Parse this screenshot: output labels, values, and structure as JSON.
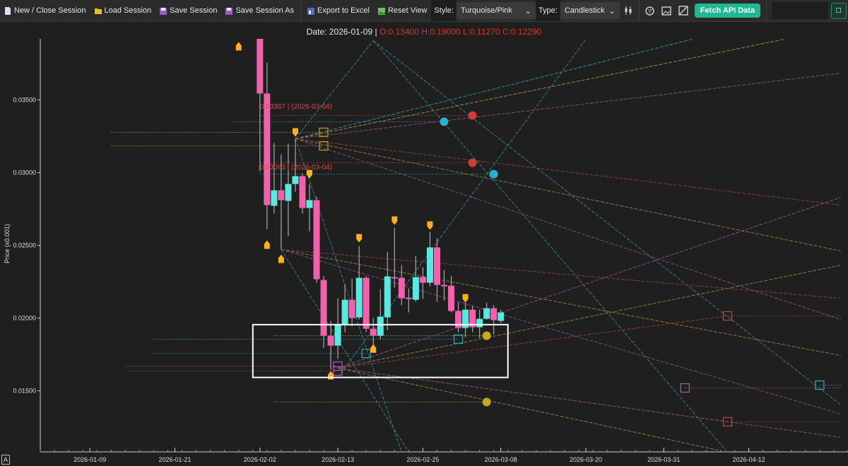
{
  "toolbar": {
    "new_close": "New / Close Session",
    "load": "Load Session",
    "save": "Save Session",
    "save_as": "Save Session As",
    "export": "Export to Excel",
    "reset": "Reset View",
    "style_label": "Style:",
    "style_value": "Turquoise/Pink",
    "type_label": "Type:",
    "type_value": "Candlestick",
    "fetch": "Fetch API Data",
    "icons": [
      "document-icon",
      "folder-icon",
      "floppy-icon",
      "floppy-icon",
      "excel-chart-icon",
      "image-icon",
      "candlestick-icon",
      "palette-icon",
      "image-icon",
      "draw-line-icon",
      "panel-toggle-icon"
    ]
  },
  "header": {
    "date_text": "Date: 2026-01-09 | ",
    "ohlc_text": "O:0.13400 H:0.19000 L:0.11270 C:0.12290"
  },
  "corner_button": "A",
  "chart_data": {
    "type": "candlestick",
    "ylabel": "Price (x0.001)",
    "xlabel": "",
    "xlim": [
      "2026-01-02",
      "2026-04-26"
    ],
    "ylim": [
      0.0109,
      0.0392
    ],
    "yticks": [
      "0.03500",
      "0.03000",
      "0.02500",
      "0.02000",
      "0.01500"
    ],
    "xticks": [
      "2026-01-09",
      "2026-01-21",
      "2026-02-02",
      "2026-02-13",
      "2026-02-25",
      "2026-03-08",
      "2026-03-20",
      "2026-03-31",
      "2026-04-12"
    ],
    "colors": {
      "up": "#5ce8de",
      "down": "#f062ab",
      "wick": "#a8a8a8",
      "background": "#1f1f1f",
      "marker": "#ffb020"
    },
    "candles": [
      {
        "date": "2026-02-02",
        "o": 0.0395,
        "h": 0.04,
        "l": 0.0301,
        "c": 0.03544
      },
      {
        "date": "2026-02-03",
        "o": 0.03544,
        "h": 0.03757,
        "l": 0.02612,
        "c": 0.02777
      },
      {
        "date": "2026-02-04",
        "o": 0.02772,
        "h": 0.03204,
        "l": 0.02719,
        "c": 0.02879
      },
      {
        "date": "2026-02-05",
        "o": 0.02879,
        "h": 0.03126,
        "l": 0.02471,
        "c": 0.02811
      },
      {
        "date": "2026-02-06",
        "o": 0.02806,
        "h": 0.03199,
        "l": 0.02563,
        "c": 0.02922
      },
      {
        "date": "2026-02-07",
        "o": 0.02922,
        "h": 0.03233,
        "l": 0.02869,
        "c": 0.02976
      },
      {
        "date": "2026-02-08",
        "o": 0.02976,
        "h": 0.02995,
        "l": 0.02719,
        "c": 0.02757
      },
      {
        "date": "2026-02-09",
        "o": 0.02757,
        "h": 0.02922,
        "l": 0.02597,
        "c": 0.02811
      },
      {
        "date": "2026-02-10",
        "o": 0.02811,
        "h": 0.02835,
        "l": 0.02243,
        "c": 0.02267
      },
      {
        "date": "2026-02-11",
        "o": 0.02262,
        "h": 0.02291,
        "l": 0.01796,
        "c": 0.01879
      },
      {
        "date": "2026-02-12",
        "o": 0.01879,
        "h": 0.01981,
        "l": 0.01646,
        "c": 0.01811
      },
      {
        "date": "2026-02-13",
        "o": 0.01811,
        "h": 0.02136,
        "l": 0.01719,
        "c": 0.01956
      },
      {
        "date": "2026-02-14",
        "o": 0.01956,
        "h": 0.02233,
        "l": 0.01903,
        "c": 0.02126
      },
      {
        "date": "2026-02-15",
        "o": 0.02126,
        "h": 0.02272,
        "l": 0.01942,
        "c": 0.02
      },
      {
        "date": "2026-02-16",
        "o": 0.02005,
        "h": 0.02495,
        "l": 0.0199,
        "c": 0.02277
      },
      {
        "date": "2026-02-17",
        "o": 0.02277,
        "h": 0.0229,
        "l": 0.01903,
        "c": 0.01927
      },
      {
        "date": "2026-02-18",
        "o": 0.01927,
        "h": 0.02,
        "l": 0.01816,
        "c": 0.01879
      },
      {
        "date": "2026-02-19",
        "o": 0.01879,
        "h": 0.02199,
        "l": 0.01854,
        "c": 0.0201
      },
      {
        "date": "2026-02-20",
        "o": 0.02005,
        "h": 0.02456,
        "l": 0.01918,
        "c": 0.02287
      },
      {
        "date": "2026-02-21",
        "o": 0.02282,
        "h": 0.02621,
        "l": 0.02209,
        "c": 0.02277
      },
      {
        "date": "2026-02-22",
        "o": 0.02277,
        "h": 0.02364,
        "l": 0.02088,
        "c": 0.02136
      },
      {
        "date": "2026-02-23",
        "o": 0.02141,
        "h": 0.02204,
        "l": 0.02039,
        "c": 0.02131
      },
      {
        "date": "2026-02-24",
        "o": 0.02126,
        "h": 0.02427,
        "l": 0.02112,
        "c": 0.02282
      },
      {
        "date": "2026-02-25",
        "o": 0.02282,
        "h": 0.0235,
        "l": 0.02131,
        "c": 0.02243
      },
      {
        "date": "2026-02-26",
        "o": 0.02243,
        "h": 0.02592,
        "l": 0.02219,
        "c": 0.02486
      },
      {
        "date": "2026-02-27",
        "o": 0.02486,
        "h": 0.02549,
        "l": 0.02112,
        "c": 0.02228
      },
      {
        "date": "2026-02-28",
        "o": 0.02228,
        "h": 0.0233,
        "l": 0.02122,
        "c": 0.02223
      },
      {
        "date": "2026-03-01",
        "o": 0.02223,
        "h": 0.02291,
        "l": 0.02039,
        "c": 0.02049
      },
      {
        "date": "2026-03-02",
        "o": 0.02049,
        "h": 0.02107,
        "l": 0.01903,
        "c": 0.01932
      },
      {
        "date": "2026-03-03",
        "o": 0.01932,
        "h": 0.02107,
        "l": 0.01869,
        "c": 0.02058
      },
      {
        "date": "2026-03-04",
        "o": 0.02058,
        "h": 0.02083,
        "l": 0.01903,
        "c": 0.01937
      },
      {
        "date": "2026-03-05",
        "o": 0.01937,
        "h": 0.02058,
        "l": 0.01864,
        "c": 0.01995
      },
      {
        "date": "2026-03-06",
        "o": 0.01995,
        "h": 0.02107,
        "l": 0.0199,
        "c": 0.02068
      },
      {
        "date": "2026-03-07",
        "o": 0.02068,
        "h": 0.02088,
        "l": 0.01888,
        "c": 0.01986
      },
      {
        "date": "2026-03-08",
        "o": 0.01981,
        "h": 0.02058,
        "l": 0.01966,
        "c": 0.02039
      }
    ],
    "trend_lines": [
      {
        "from": [
          "2026-02-07",
          0.03233
        ],
        "to": [
          "2026-04-04",
          0.03917
        ],
        "color": "#2f8f95"
      },
      {
        "from": [
          "2026-02-07",
          0.03233
        ],
        "to": [
          "2026-04-17",
          0.03917
        ],
        "color": "#9a8a3a"
      },
      {
        "from": [
          "2026-02-07",
          0.03233
        ],
        "to": [
          "2026-04-25",
          0.03684
        ],
        "color": "#8a4a6a"
      },
      {
        "from": [
          "2026-02-07",
          0.03233
        ],
        "to": [
          "2026-04-25",
          0.02777
        ],
        "color": "#8a3a3a"
      },
      {
        "from": [
          "2026-02-07",
          0.03233
        ],
        "to": [
          "2026-04-25",
          0.02461
        ],
        "color": "#8a7a36"
      },
      {
        "from": [
          "2026-02-07",
          0.03233
        ],
        "to": [
          "2026-04-25",
          0.0199
        ],
        "color": "#7a4a7a"
      },
      {
        "from": [
          "2026-02-07",
          0.03233
        ],
        "to": [
          "2026-02-22",
          0.01078
        ],
        "color": "#2f7f85"
      },
      {
        "from": [
          "2026-02-07",
          0.03233
        ],
        "to": [
          "2026-02-18",
          0.03908
        ],
        "color": "#2f7f85"
      },
      {
        "from": [
          "2026-02-18",
          0.03908
        ],
        "to": [
          "2026-04-25",
          0.01403
        ],
        "color": "#2f7f85"
      },
      {
        "from": [
          "2026-02-18",
          0.03908
        ],
        "to": [
          "2026-04-09",
          0.01078
        ],
        "color": "#2f7f85"
      },
      {
        "from": [
          "2026-02-13",
          0.01592
        ],
        "to": [
          "2026-03-20",
          0.03917
        ],
        "color": "#2f7f85"
      },
      {
        "from": [
          "2026-02-05",
          0.02471
        ],
        "to": [
          "2026-02-23",
          0.01078
        ],
        "color": "#2f7f85"
      },
      {
        "from": [
          "2026-02-05",
          0.02471
        ],
        "to": [
          "2026-04-25",
          0.02136
        ],
        "color": "#8a3a3a"
      },
      {
        "from": [
          "2026-02-05",
          0.02471
        ],
        "to": [
          "2026-04-25",
          0.01743
        ],
        "color": "#8a7a36"
      },
      {
        "from": [
          "2026-02-05",
          0.02471
        ],
        "to": [
          "2026-04-25",
          0.0134
        ],
        "color": "#7a4a7a"
      },
      {
        "from": [
          "2026-02-13",
          0.01656
        ],
        "to": [
          "2026-04-25",
          0.0283
        ],
        "color": "#8a4a8a"
      },
      {
        "from": [
          "2026-02-13",
          0.01656
        ],
        "to": [
          "2026-04-25",
          0.02364
        ],
        "color": "#8a7a36"
      },
      {
        "from": [
          "2026-02-13",
          0.01656
        ],
        "to": [
          "2026-04-09",
          0.02015
        ],
        "color": "#8a3a3a"
      },
      {
        "from": [
          "2026-02-13",
          0.01656
        ],
        "to": [
          "2026-04-09",
          0.01287
        ],
        "color": "#8a3a3a"
      },
      {
        "from": [
          "2026-02-13",
          0.01656
        ],
        "to": [
          "2026-04-25",
          0.0118
        ],
        "color": "#7a4a7a"
      },
      {
        "from": [
          "2026-02-13",
          0.01656
        ],
        "to": [
          "2026-04-09",
          0.01078
        ],
        "color": "#8a7a36"
      }
    ],
    "level_lines": [
      {
        "from": "2026-01-12",
        "to": "2026-02-11",
        "price": 0.03277,
        "color": "#8a7a36"
      },
      {
        "from": "2026-01-12",
        "to": "2026-02-11",
        "price": 0.03184,
        "color": "#8a7a36"
      },
      {
        "from": "2026-02-02",
        "to": "2026-03-04",
        "price": 0.03393,
        "color": "#8a3a3a"
      },
      {
        "from": "2026-01-29",
        "to": "2026-02-28",
        "price": 0.0335,
        "color": "#2f7f85"
      },
      {
        "from": "2026-02-02",
        "to": "2026-03-04",
        "price": 0.03068,
        "color": "#8a3a3a"
      },
      {
        "from": "2026-02-02",
        "to": "2026-03-07",
        "price": 0.0299,
        "color": "#2f7f85"
      },
      {
        "from": "2026-01-18",
        "to": "2026-03-02",
        "price": 0.01855,
        "color": "#2f7f85"
      },
      {
        "from": "2026-01-18",
        "to": "2026-02-17",
        "price": 0.01757,
        "color": "#2f7f85"
      },
      {
        "from": "2026-02-04",
        "to": "2026-03-06",
        "price": 0.01879,
        "color": "#8a7a36"
      },
      {
        "from": "2026-01-14",
        "to": "2026-02-13",
        "price": 0.0167,
        "color": "#7a4a7a"
      },
      {
        "from": "2026-01-14",
        "to": "2026-02-13",
        "price": 0.01636,
        "color": "#8a3a5a"
      },
      {
        "from": "2026-02-04",
        "to": "2026-03-06",
        "price": 0.01423,
        "color": "#8a7a36"
      },
      {
        "from": "2026-04-09",
        "to": "2026-04-25",
        "price": 0.02015,
        "color": "#8a3a3a"
      },
      {
        "from": "2026-04-09",
        "to": "2026-04-25",
        "price": 0.01287,
        "color": "#8a3a3a"
      },
      {
        "from": "2026-04-03",
        "to": "2026-04-25",
        "price": 0.0152,
        "color": "#7a4a7a"
      },
      {
        "from": "2026-04-22",
        "to": "2026-04-25",
        "price": 0.01539,
        "color": "#2f7f85"
      }
    ],
    "arrows_up": [
      {
        "date": "2026-01-30",
        "price": 0.03869
      },
      {
        "date": "2026-02-03",
        "price": 0.02505
      },
      {
        "date": "2026-02-05",
        "price": 0.02408
      },
      {
        "date": "2026-02-12",
        "price": 0.01607
      },
      {
        "date": "2026-02-18",
        "price": 0.01791
      }
    ],
    "arrows_down": [
      {
        "date": "2026-02-07",
        "price": 0.03277
      },
      {
        "date": "2026-02-09",
        "price": 0.0299
      },
      {
        "date": "2026-02-16",
        "price": 0.02549
      },
      {
        "date": "2026-02-21",
        "price": 0.0267
      },
      {
        "date": "2026-02-26",
        "price": 0.02636
      },
      {
        "date": "2026-03-03",
        "price": 0.02136
      }
    ],
    "circles": [
      {
        "date": "2026-03-04",
        "price": 0.03393,
        "color": "#d63a30"
      },
      {
        "date": "2026-03-04",
        "price": 0.03068,
        "color": "#d63a30"
      },
      {
        "date": "2026-02-28",
        "price": 0.0335,
        "color": "#27b2d4"
      },
      {
        "date": "2026-03-07",
        "price": 0.0299,
        "color": "#27b2d4"
      },
      {
        "date": "2026-03-06",
        "price": 0.01879,
        "color": "#c9a820"
      },
      {
        "date": "2026-03-06",
        "price": 0.01423,
        "color": "#c9a820"
      }
    ],
    "squares": [
      {
        "date": "2026-02-11",
        "price": 0.03277,
        "color": "#b8962a"
      },
      {
        "date": "2026-02-11",
        "price": 0.03184,
        "color": "#b8962a"
      },
      {
        "date": "2026-02-17",
        "price": 0.01757,
        "color": "#2f9fb0"
      },
      {
        "date": "2026-03-02",
        "price": 0.01855,
        "color": "#2f9fb0"
      },
      {
        "date": "2026-02-13",
        "price": 0.0167,
        "color": "#b050b0"
      },
      {
        "date": "2026-02-13",
        "price": 0.01636,
        "color": "#b050b0"
      },
      {
        "date": "2026-04-09",
        "price": 0.02015,
        "color": "#c04040"
      },
      {
        "date": "2026-04-09",
        "price": 0.01287,
        "color": "#c04040"
      },
      {
        "date": "2026-04-03",
        "price": 0.0152,
        "color": "#b050b0"
      },
      {
        "date": "2026-04-22",
        "price": 0.01539,
        "color": "#2f9fb0"
      }
    ],
    "selection_box": {
      "from": [
        "2026-02-01",
        0.01955
      ],
      "to": [
        "2026-03-09",
        0.01592
      ],
      "color": "#ffffff"
    },
    "annotations": [
      {
        "text": "0.03387 | (2026-03-04)",
        "date": "2026-02-02",
        "price": 0.0345
      },
      {
        "text": "0.03063 | (2026-03-04)",
        "date": "2026-02-02",
        "price": 0.0303
      }
    ]
  }
}
